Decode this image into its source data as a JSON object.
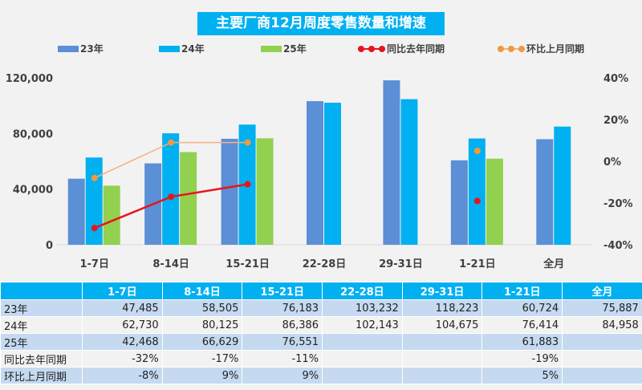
{
  "chart_data": {
    "type": "bar",
    "title": "主要厂商12月周度零售数量和增速",
    "categories": [
      "1-7日",
      "8-14日",
      "15-21日",
      "22-28日",
      "29-31日",
      "1-21日",
      "全月"
    ],
    "series": [
      {
        "name": "23年",
        "type": "bar",
        "axis": "left",
        "color": "#5b8fd6",
        "values": [
          47485,
          58505,
          76183,
          103232,
          118223,
          60724,
          75887
        ]
      },
      {
        "name": "24年",
        "type": "bar",
        "axis": "left",
        "color": "#00b0f0",
        "values": [
          62730,
          80125,
          86386,
          102143,
          104675,
          76414,
          84958
        ]
      },
      {
        "name": "25年",
        "type": "bar",
        "axis": "left",
        "color": "#92d050",
        "values": [
          42468,
          66629,
          76551,
          null,
          null,
          61883,
          null
        ]
      },
      {
        "name": "同比去年同期",
        "type": "line",
        "axis": "right",
        "color": "#e8141c",
        "values": [
          -32,
          -17,
          -11,
          null,
          null,
          -19,
          null
        ]
      },
      {
        "name": "环比上月同期",
        "type": "line",
        "axis": "right",
        "color": "#f4b183",
        "marker_color": "#f09a3e",
        "values": [
          -8,
          9,
          9,
          null,
          null,
          5,
          null
        ]
      }
    ],
    "left_axis": {
      "ylim": [
        0,
        120000
      ],
      "ticks": [
        "0",
        "40,000",
        "80,000",
        "120,000"
      ]
    },
    "right_axis": {
      "ylim": [
        -40,
        40
      ],
      "ticks": [
        "-40%",
        "-20%",
        "0%",
        "20%",
        "40%"
      ]
    },
    "grid": false,
    "legend_position": "top"
  },
  "table": {
    "header": [
      "",
      "1-7日",
      "8-14日",
      "15-21日",
      "22-28日",
      "29-31日",
      "1-21日",
      "全月"
    ],
    "rows": [
      [
        "23年",
        "47,485",
        "58,505",
        "76,183",
        "103,232",
        "118,223",
        "60,724",
        "75,887"
      ],
      [
        "24年",
        "62,730",
        "80,125",
        "86,386",
        "102,143",
        "104,675",
        "76,414",
        "84,958"
      ],
      [
        "25年",
        "42,468",
        "66,629",
        "76,551",
        "",
        "",
        "61,883",
        ""
      ],
      [
        "同比去年同期",
        "-32%",
        "-17%",
        "-11%",
        "",
        "",
        "-19%",
        ""
      ],
      [
        "环比上月同期",
        "-8%",
        "9%",
        "9%",
        "",
        "",
        "5%",
        ""
      ]
    ]
  }
}
